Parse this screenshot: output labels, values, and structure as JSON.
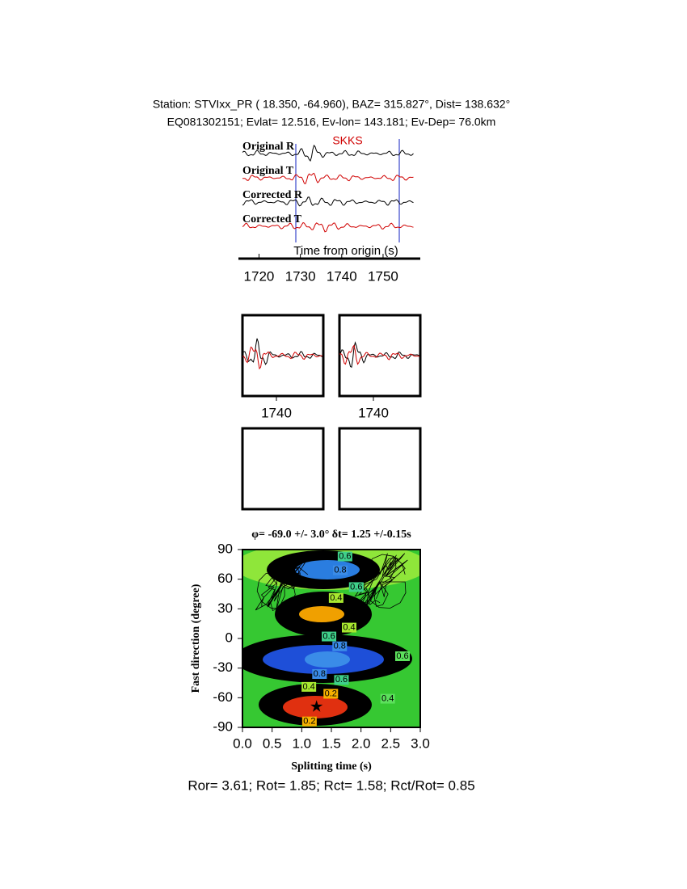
{
  "header": {
    "station_line": "Station: STVIxx_PR (  18.350,  -64.960), BAZ=  315.827°, Dist=  138.632°",
    "event_line": "EQ081302151; Evlat=  12.516, Ev-lon= 143.181; Ev-Dep= 76.0km"
  },
  "chart_data": [
    {
      "type": "waveform",
      "phase": "SKKS",
      "xlabel": "Time from origin (s)",
      "series": [
        {
          "name": "Original R",
          "color": "#000000"
        },
        {
          "name": "Original T",
          "color": "#d00000"
        },
        {
          "name": "Corrected R",
          "color": "#000000"
        },
        {
          "name": "Corrected T",
          "color": "#d00000"
        }
      ],
      "xlim": [
        1716,
        1759
      ],
      "xticks": [
        1720,
        1730,
        1740,
        1750
      ]
    },
    {
      "type": "waveform-panels",
      "xlim": [
        1731.6,
        1751.6
      ],
      "panels": [
        {
          "xticks": [
            1740
          ]
        },
        {
          "xticks": [
            1740
          ]
        }
      ]
    },
    {
      "type": "contour",
      "title": "φ= -69.0 +/- 3.0° δt= 1.25 +/-0.15s",
      "xlabel": "Splitting time (s)",
      "ylabel": "Fast direction (degree)",
      "xlim": [
        0,
        3
      ],
      "ylim": [
        -90,
        90
      ],
      "xticks": [
        {
          "value": 0,
          "label": "0.0"
        },
        {
          "value": 0.5,
          "label": "0.5"
        },
        {
          "value": 1,
          "label": "1.0"
        },
        {
          "value": 1.5,
          "label": "1.5"
        },
        {
          "value": 2,
          "label": "2.0"
        },
        {
          "value": 2.5,
          "label": "2.5"
        },
        {
          "value": 3,
          "label": "3.0"
        }
      ],
      "yticks": [
        90,
        60,
        30,
        0,
        -30,
        -60,
        -90
      ],
      "best": {
        "x": 1.25,
        "y": -69
      },
      "contour_labels": [
        {
          "text": 0.6,
          "x": 1.73,
          "y": 83,
          "color": "#3fd08a"
        },
        {
          "text": 0.8,
          "x": 1.65,
          "y": 69,
          "color": "#3a8ce8"
        },
        {
          "text": 0.6,
          "x": 1.92,
          "y": 52,
          "color": "#3fd08a"
        },
        {
          "text": 0.4,
          "x": 1.58,
          "y": 41,
          "color": "#a8e830"
        },
        {
          "text": 0.4,
          "x": 1.8,
          "y": 11,
          "color": "#a8e830"
        },
        {
          "text": 0.6,
          "x": 1.46,
          "y": 2,
          "color": "#3fd08a"
        },
        {
          "text": 0.8,
          "x": 1.64,
          "y": -8,
          "color": "#3a8ce8"
        },
        {
          "text": 0.8,
          "x": 1.3,
          "y": -36,
          "color": "#3a8ce8"
        },
        {
          "text": 0.6,
          "x": 1.67,
          "y": -42,
          "color": "#3fd08a"
        },
        {
          "text": 0.4,
          "x": 1.12,
          "y": -49,
          "color": "#a8e830"
        },
        {
          "text": 0.2,
          "x": 1.49,
          "y": -56,
          "color": "#f5b000"
        },
        {
          "text": 0.2,
          "x": 1.13,
          "y": -84,
          "color": "#f5b000"
        },
        {
          "text": 0.4,
          "x": 2.45,
          "y": -61,
          "color": "#5ce05c"
        },
        {
          "text": 0.6,
          "x": 2.7,
          "y": -18,
          "color": "#5ce05c"
        }
      ]
    }
  ],
  "footer": {
    "stats": "Ror= 3.61; Rot= 1.85; Rct= 1.58; Rct/Rot= 0.85"
  }
}
